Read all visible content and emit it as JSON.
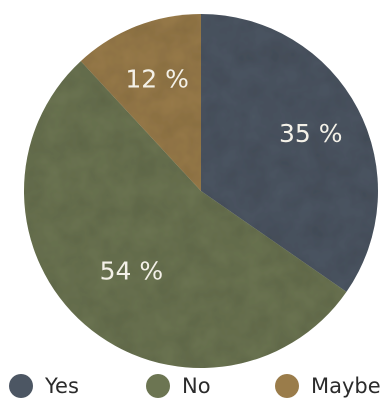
{
  "chart_data": {
    "type": "pie",
    "categories": [
      "Yes",
      "No",
      "Maybe"
    ],
    "values": [
      35,
      54,
      12
    ],
    "value_labels": [
      "35 %",
      "54 %",
      "12 %"
    ],
    "colors": [
      "#4c5663",
      "#6c7552",
      "#9a7c4a"
    ],
    "start_angle": "12 o'clock",
    "direction": "clockwise",
    "legend_position": "bottom"
  }
}
